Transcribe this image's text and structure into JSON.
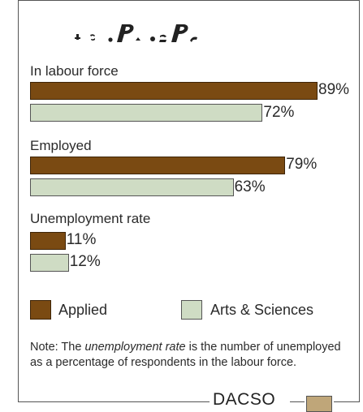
{
  "chart_data": {
    "type": "bar",
    "orientation": "horizontal",
    "categories": [
      "In labour force",
      "Employed",
      "Unemployment rate"
    ],
    "series": [
      {
        "name": "Applied",
        "color": "#7a4a12",
        "values": [
          89,
          79,
          11
        ]
      },
      {
        "name": "Arts & Sciences",
        "color": "#cfdcc4",
        "values": [
          72,
          63,
          12
        ]
      }
    ],
    "value_labels": [
      [
        "89%",
        "72%"
      ],
      [
        "79%",
        "63%"
      ],
      [
        "11%",
        "12%"
      ]
    ],
    "unit": "%",
    "xlim": [
      0,
      100
    ],
    "grid": false,
    "legend_position": "bottom"
  },
  "note": {
    "prefix": "Note: The ",
    "emphasis": "unemployment rate",
    "suffix": " is the number of unemployed as a percentage of respondents in the labour force."
  },
  "logo": {
    "text": "DACSO"
  }
}
